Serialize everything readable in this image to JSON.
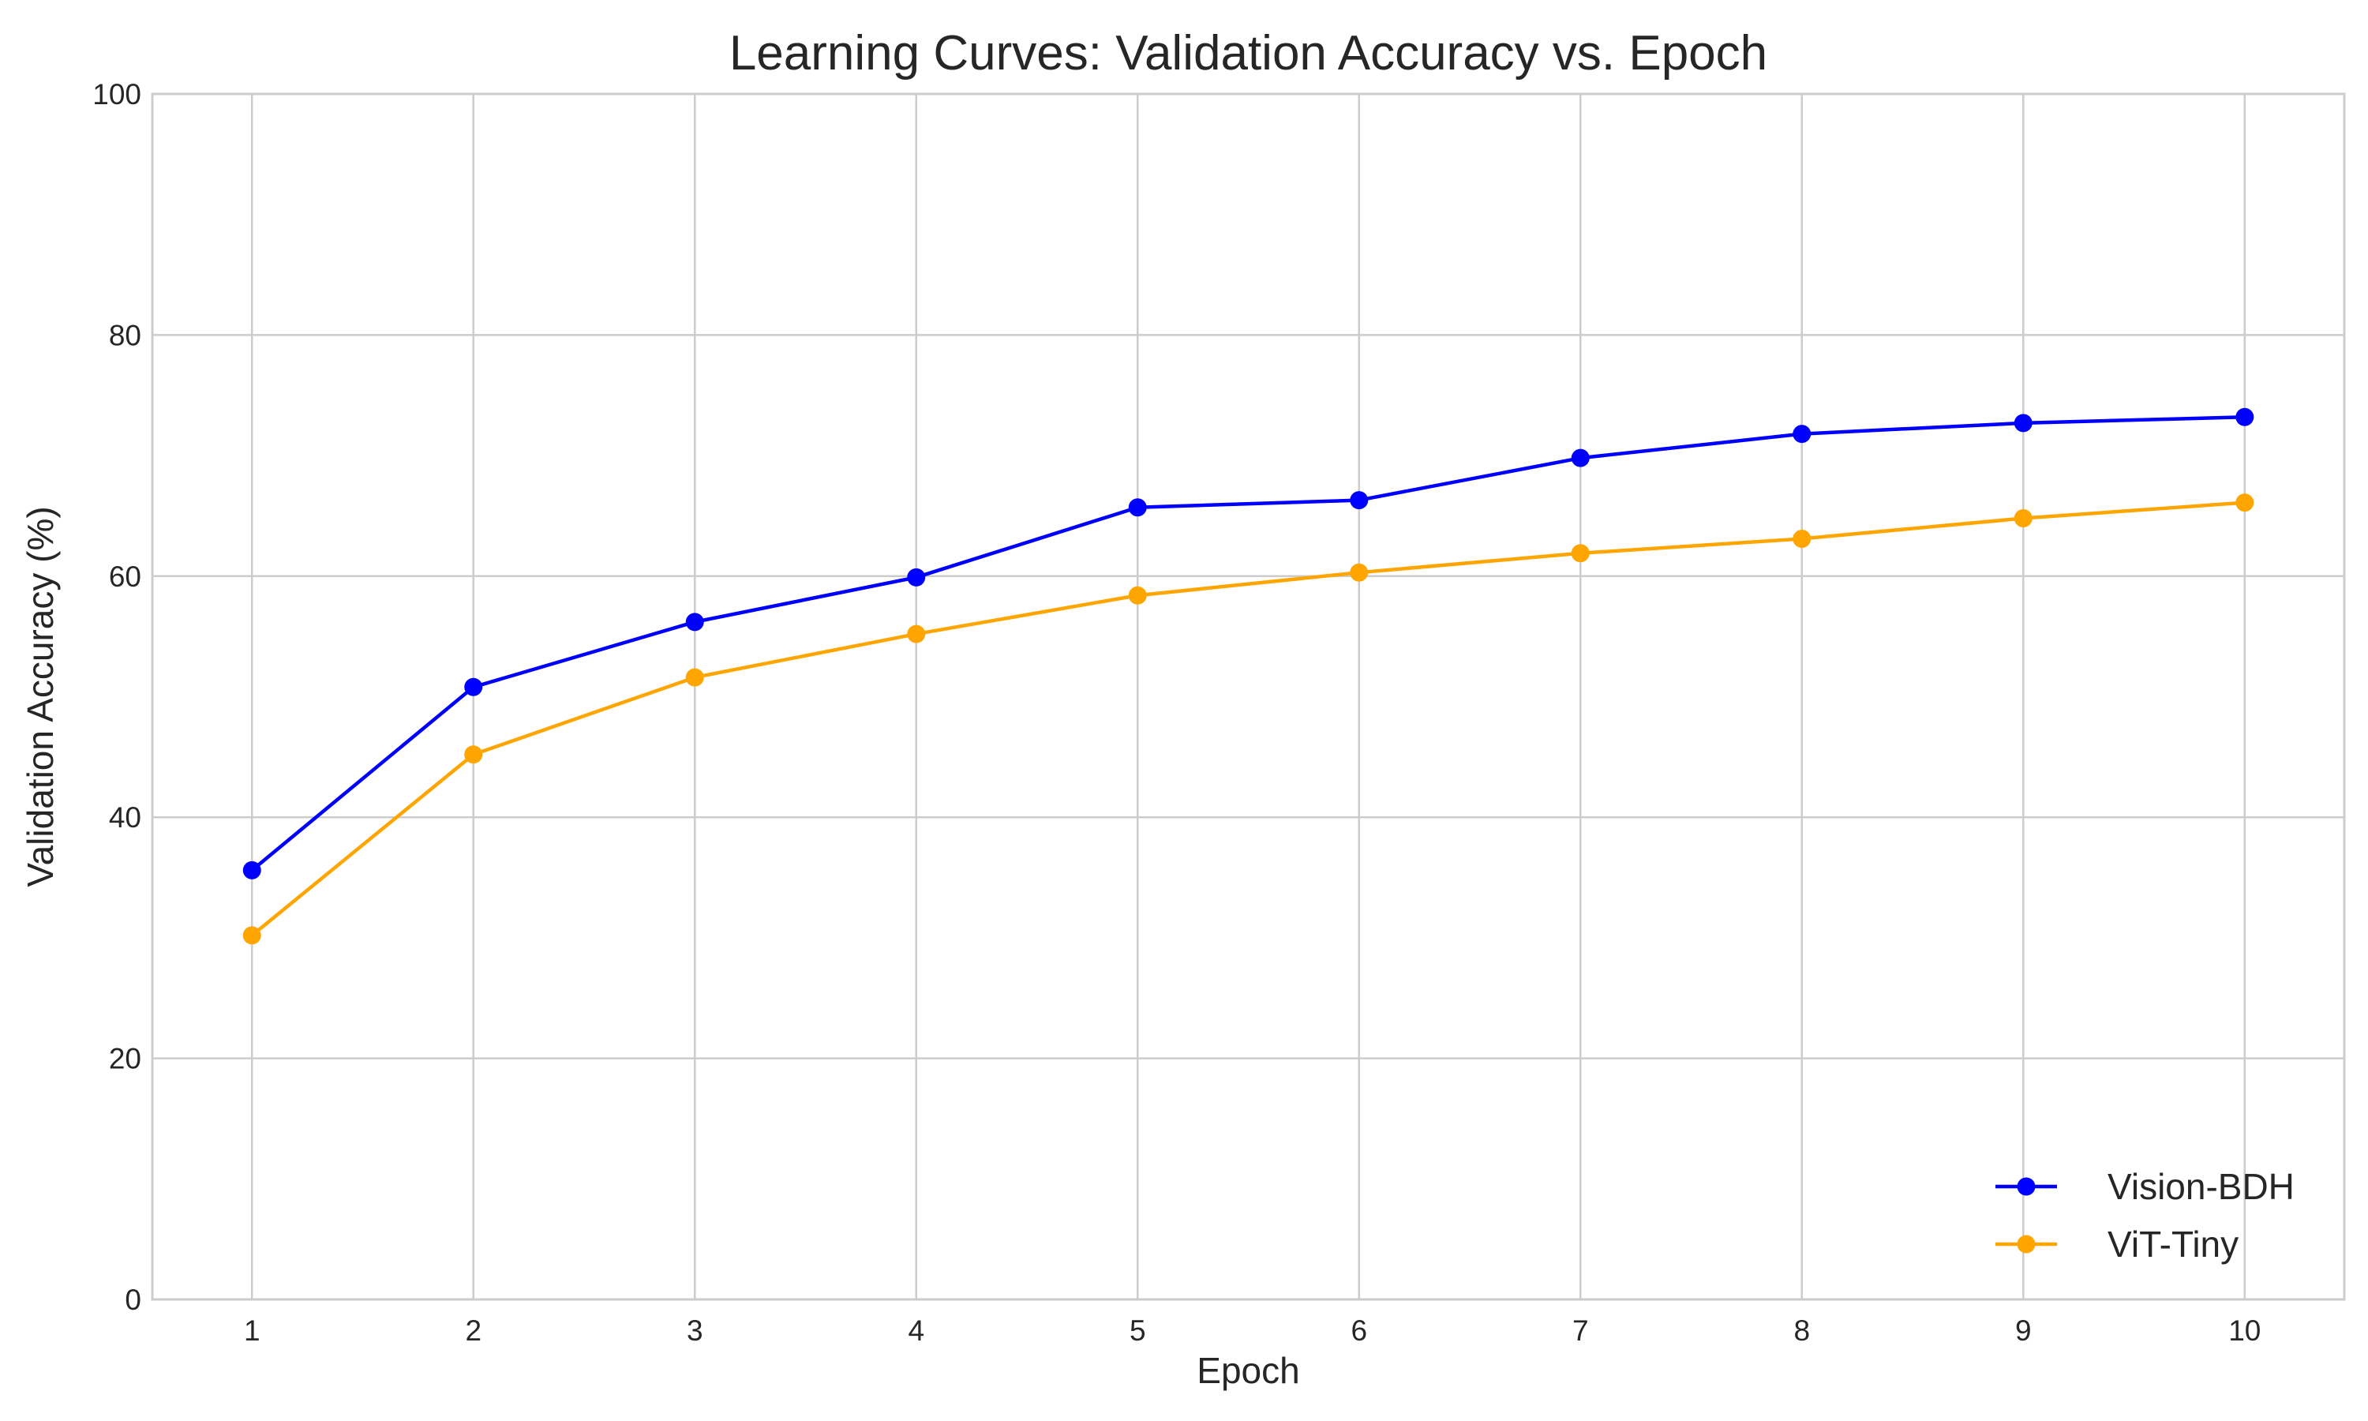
{
  "chart_data": {
    "type": "line",
    "title": "Learning Curves: Validation Accuracy vs. Epoch",
    "xlabel": "Epoch",
    "ylabel": "Validation Accuracy (%)",
    "x": [
      1,
      2,
      3,
      4,
      5,
      6,
      7,
      8,
      9,
      10
    ],
    "xlim": [
      0.55,
      10.45
    ],
    "ylim": [
      0,
      100
    ],
    "xticks": [
      1,
      2,
      3,
      4,
      5,
      6,
      7,
      8,
      9,
      10
    ],
    "yticks": [
      0,
      20,
      40,
      60,
      80,
      100
    ],
    "grid": true,
    "legend_position": "bottom-right",
    "series": [
      {
        "name": "Vision-BDH",
        "color": "#0000ff",
        "values": [
          35.6,
          50.8,
          56.2,
          59.9,
          65.7,
          66.3,
          69.8,
          71.8,
          72.7,
          73.2
        ]
      },
      {
        "name": "ViT-Tiny",
        "color": "#ffa500",
        "values": [
          30.2,
          45.2,
          51.6,
          55.2,
          58.4,
          60.3,
          61.9,
          63.1,
          64.8,
          66.1
        ]
      }
    ]
  }
}
